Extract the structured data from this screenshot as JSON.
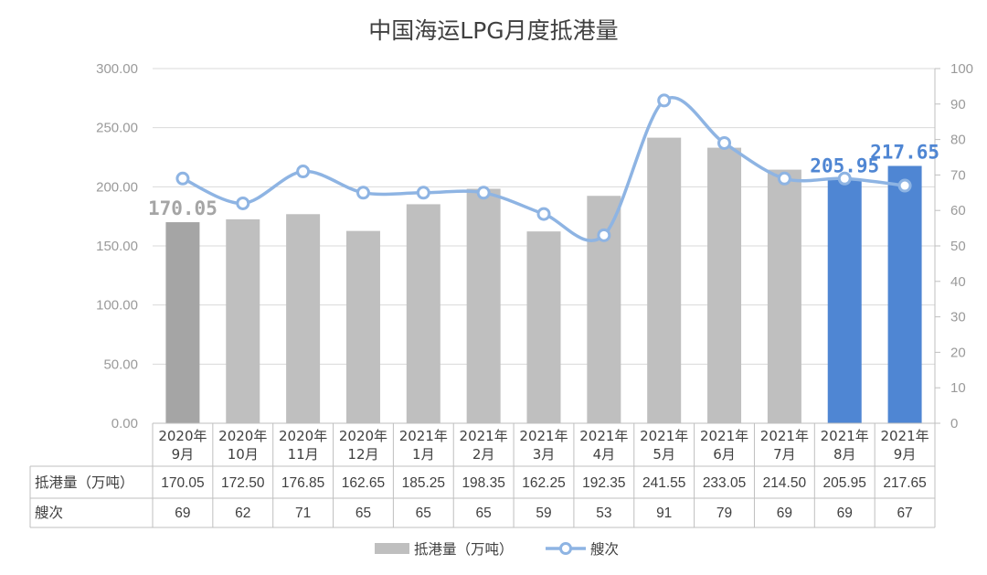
{
  "chart_data": {
    "type": "bar",
    "title": "中国海运LPG月度抵港量",
    "categories": [
      "2020年9月",
      "2020年10月",
      "2020年11月",
      "2020年12月",
      "2021年1月",
      "2021年2月",
      "2021年3月",
      "2021年4月",
      "2021年5月",
      "2021年6月",
      "2021年7月",
      "2021年8月",
      "2021年9月"
    ],
    "category_lines": [
      [
        "2020年",
        "9月"
      ],
      [
        "2020年",
        "10月"
      ],
      [
        "2020年",
        "11月"
      ],
      [
        "2020年",
        "12月"
      ],
      [
        "2021年",
        "1月"
      ],
      [
        "2021年",
        "2月"
      ],
      [
        "2021年",
        "3月"
      ],
      [
        "2021年",
        "4月"
      ],
      [
        "2021年",
        "5月"
      ],
      [
        "2021年",
        "6月"
      ],
      [
        "2021年",
        "7月"
      ],
      [
        "2021年",
        "8月"
      ],
      [
        "2021年",
        "9月"
      ]
    ],
    "series": [
      {
        "name": "抵港量（万吨）",
        "type": "bar",
        "axis": "left",
        "values": [
          170.05,
          172.5,
          176.85,
          162.65,
          185.25,
          198.35,
          162.25,
          192.35,
          241.55,
          233.05,
          214.5,
          205.95,
          217.65
        ],
        "table_values": [
          "170.05",
          "172.50",
          "176.85",
          "162.65",
          "185.25",
          "198.35",
          "162.25",
          "192.35",
          "241.55",
          "233.05",
          "214.50",
          "205.95",
          "217.65"
        ],
        "colors": [
          "#a5a5a5",
          "#bfbfbf",
          "#bfbfbf",
          "#bfbfbf",
          "#bfbfbf",
          "#bfbfbf",
          "#bfbfbf",
          "#bfbfbf",
          "#bfbfbf",
          "#bfbfbf",
          "#bfbfbf",
          "#4f86d3",
          "#4f86d3"
        ]
      },
      {
        "name": "艘次",
        "type": "line",
        "axis": "right",
        "values": [
          69,
          62,
          71,
          65,
          65,
          65,
          59,
          53,
          91,
          79,
          69,
          69,
          67
        ],
        "table_values": [
          "69",
          "62",
          "71",
          "65",
          "65",
          "65",
          "59",
          "53",
          "91",
          "79",
          "69",
          "69",
          "67"
        ],
        "color": "#8eb4e3"
      }
    ],
    "left_axis": {
      "ylim": [
        0,
        300
      ],
      "ticks": [
        "0.00",
        "50.00",
        "100.00",
        "150.00",
        "200.00",
        "250.00",
        "300.00"
      ]
    },
    "right_axis": {
      "ylim": [
        0,
        100
      ],
      "ticks": [
        "0",
        "10",
        "20",
        "30",
        "40",
        "50",
        "60",
        "70",
        "80",
        "90",
        "100"
      ]
    },
    "data_labels": [
      {
        "index": 0,
        "text": "170.05",
        "color": "#a5a5a5"
      },
      {
        "index": 11,
        "text": "205.95",
        "color": "#4f86d3"
      },
      {
        "index": 12,
        "text": "217.65",
        "color": "#4f86d3"
      }
    ],
    "grid": true,
    "legend_position": "bottom",
    "data_table": true
  }
}
